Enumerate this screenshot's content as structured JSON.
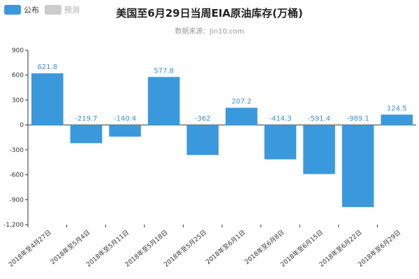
{
  "legend": [
    {
      "label": "公布",
      "color": "#3a99dc",
      "active": true
    },
    {
      "label": "预测",
      "color": "#cccccc",
      "active": false
    }
  ],
  "colors": {
    "bar": "#3a99dc",
    "label": "#3a8fd6",
    "axis": "#333333",
    "grid": "#e6e6e6"
  },
  "chart_data": {
    "type": "bar",
    "title": "美国至6月29日当周EIA原油库存(万桶)",
    "subtitle": "数据来源：Jin10.com",
    "categories": [
      "2018年至4月27日",
      "2018年至5月4日",
      "2018年至5月11日",
      "2018年至5月18日",
      "2018年至5月25日",
      "2018年至6月1日",
      "2018年至6月8日",
      "2018年至6月15日",
      "2018年至6月22日",
      "2018年至6月29日"
    ],
    "series": [
      {
        "values": [
          621.8,
          -219.7,
          -140.4,
          577.8,
          -362,
          207.2,
          -414.3,
          -591.4,
          -989.1,
          124.5
        ],
        "labels": [
          "621.8",
          "-219.7",
          "-140.4",
          "577.8",
          "-362",
          "207.2",
          "-414.3",
          "-591.4",
          "-989.1",
          "124.5"
        ]
      }
    ],
    "ylim": [
      -1200,
      900
    ],
    "yticks": [
      900,
      600,
      300,
      0,
      -300,
      -600,
      -900,
      -1200
    ],
    "ytick_labels": [
      "900",
      "600",
      "300",
      "0",
      "-300",
      "-600",
      "-900",
      "-1,200"
    ],
    "grid": false,
    "legend_position": "top-left"
  }
}
